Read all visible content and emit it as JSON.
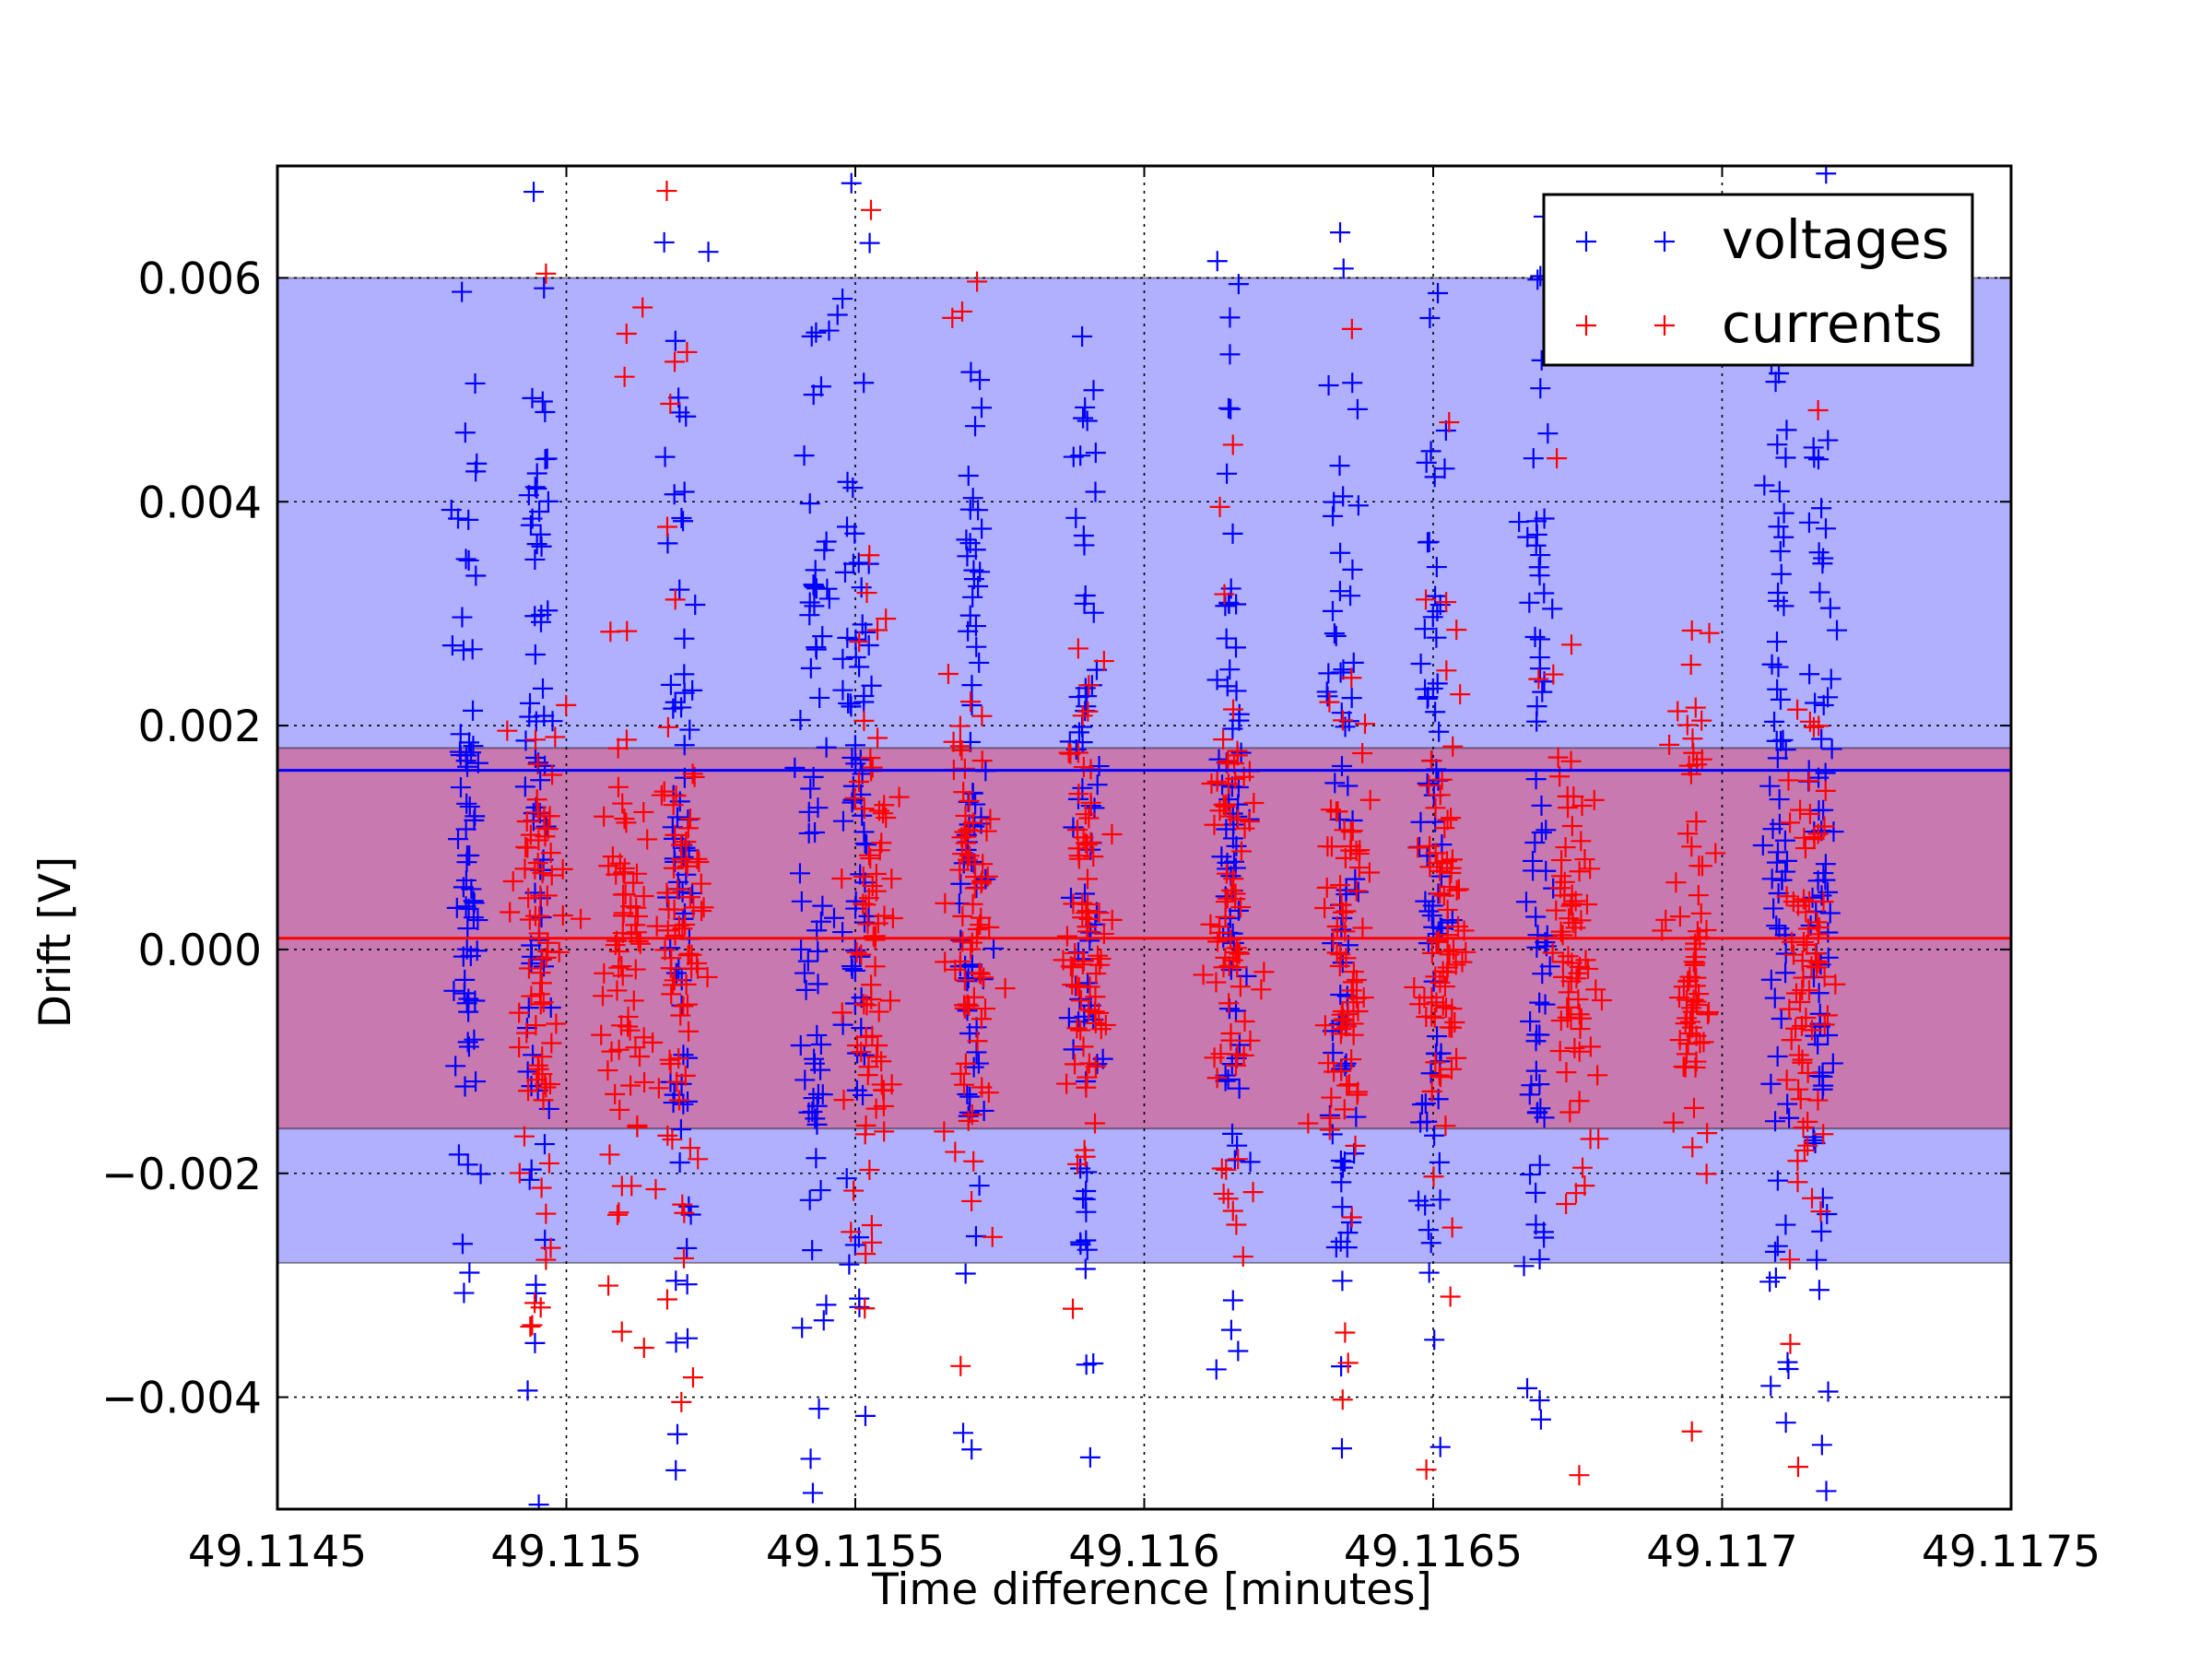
{
  "chart_data": {
    "type": "scatter",
    "title": "",
    "xlabel": "Time difference [minutes]",
    "ylabel": "Drift [V]",
    "xlim": [
      49.1145,
      49.1175
    ],
    "ylim": [
      -0.005,
      0.007
    ],
    "xticks": [
      49.1145,
      49.115,
      49.1155,
      49.116,
      49.1165,
      49.117,
      49.1175
    ],
    "xtick_labels": [
      "49.1145",
      "49.115",
      "49.1155",
      "49.116",
      "49.1165",
      "49.117",
      "49.1175"
    ],
    "yticks": [
      -0.004,
      -0.002,
      0.0,
      0.002,
      0.004,
      0.006
    ],
    "ytick_labels": [
      "−0.004",
      "−0.002",
      "0.000",
      "0.002",
      "0.004",
      "0.006"
    ],
    "grid": true,
    "legend_position": "top-right",
    "series": [
      {
        "name": "voltages",
        "color": "#0000ff",
        "marker": "+",
        "mean": 0.0016,
        "band": [
          -0.0028,
          0.006
        ],
        "x_clusters": [
          49.11483,
          49.11495,
          49.1152,
          49.11543,
          49.1155,
          49.1157,
          49.1159,
          49.11615,
          49.11634,
          49.1165,
          49.11668,
          49.1171,
          49.11717
        ],
        "y_range": [
          -0.005,
          0.007
        ]
      },
      {
        "name": "currents",
        "color": "#ff0000",
        "marker": "+",
        "mean": 0.0001,
        "band": [
          -0.0016,
          0.0018
        ],
        "x_clusters": [
          49.11495,
          49.1151,
          49.1152,
          49.11553,
          49.1157,
          49.1159,
          49.11615,
          49.11635,
          49.11652,
          49.11675,
          49.11695,
          49.11715
        ],
        "y_range": [
          -0.0049,
          0.0068
        ]
      }
    ]
  }
}
